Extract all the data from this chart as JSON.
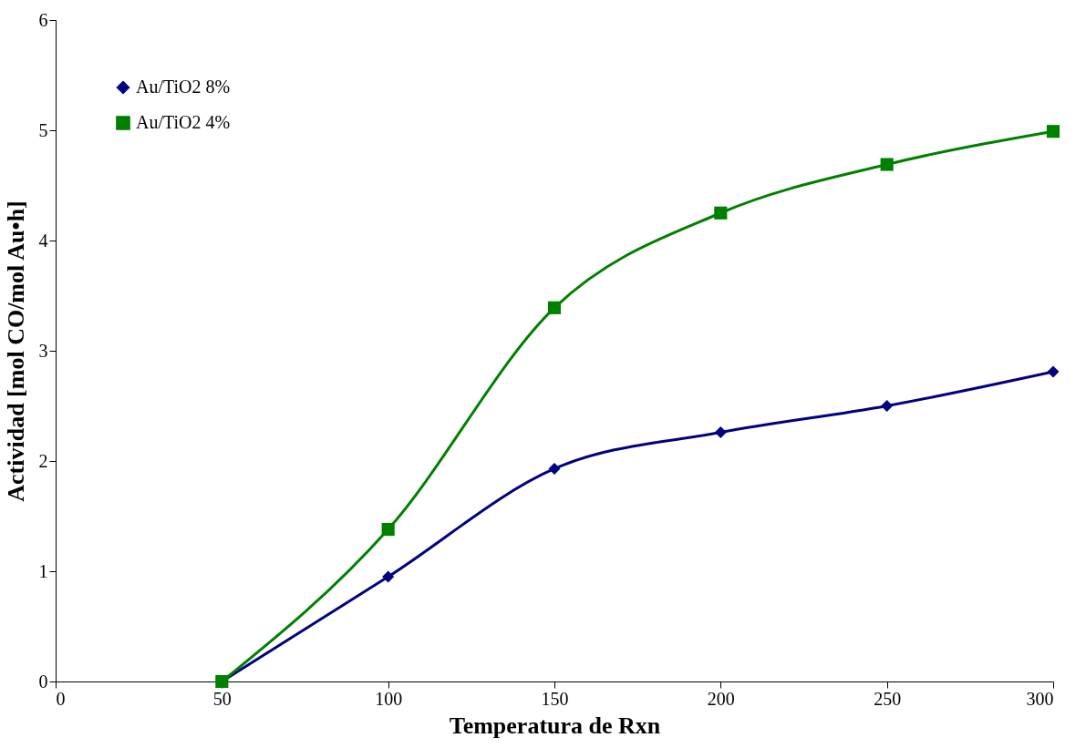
{
  "chart_data": {
    "type": "line",
    "xlabel": "Temperatura de Rxn",
    "ylabel": "Actividad [mol CO/mol Au•h]",
    "x": [
      50,
      100,
      150,
      200,
      250,
      300
    ],
    "series": [
      {
        "name": "Au/TiO2   8%",
        "color": "#000080",
        "marker": "diamond",
        "values": [
          0,
          0.95,
          1.93,
          2.26,
          2.5,
          2.81
        ]
      },
      {
        "name": "Au/TiO2   4%",
        "color": "#008000",
        "marker": "square",
        "values": [
          0,
          1.38,
          3.39,
          4.25,
          4.69,
          4.99
        ]
      }
    ],
    "xlim": [
      0,
      300
    ],
    "xticks": [
      0,
      50,
      100,
      150,
      200,
      250,
      300
    ],
    "ylim": [
      0,
      6
    ],
    "yticks": [
      0,
      1,
      2,
      3,
      4,
      5,
      6
    ],
    "grid": false,
    "legend": "top left",
    "line_style": "solid"
  }
}
